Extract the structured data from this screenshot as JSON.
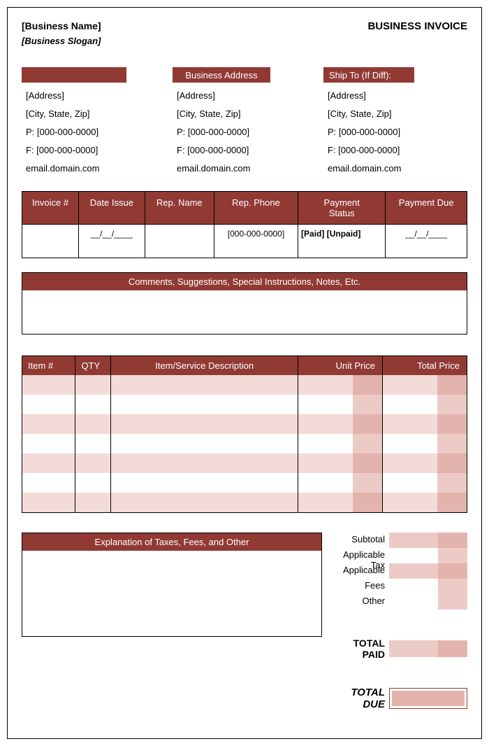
{
  "colors": {
    "brand": "#913a34",
    "light1": "#eccbc7",
    "light2": "#e3b3ae",
    "stripe": "#f3dbd8",
    "border": "#000000",
    "white": "#ffffff",
    "text": "#000000"
  },
  "header": {
    "business_name": "[Business Name]",
    "business_slogan": "[Business Slogan]",
    "doc_title": "BUSINESS INVOICE"
  },
  "address_blocks": [
    {
      "title": "",
      "lines": [
        "[Address]",
        "[City, State, Zip]",
        "P: [000-000-0000]",
        "F: [000-000-0000]",
        "email.domain.com"
      ]
    },
    {
      "title": "Business Address",
      "lines": [
        "[Address]",
        "[City, State, Zip]",
        "P: [000-000-0000]",
        "F: [000-000-0000]",
        "email.domain.com"
      ]
    },
    {
      "title": "Ship To (If Diff):",
      "lines": [
        "[Address]",
        "[City, State, Zip]",
        "P: [000-000-0000]",
        "F: [000-000-0000]",
        "email.domain.com"
      ]
    }
  ],
  "meta": {
    "columns": [
      "Invoice #",
      "Date Issue",
      "Rep. Name",
      "Rep. Phone",
      "Payment Status",
      "Payment Due"
    ],
    "values": [
      "",
      "__/__/____",
      "",
      "[000-000-0000]",
      "[Paid] [Unpaid]",
      "__/__/____"
    ]
  },
  "comments": {
    "title": "Comments, Suggestions,  Special Instructions,  Notes, Etc."
  },
  "items": {
    "columns": [
      "Item #",
      "QTY",
      "Item/Service Description",
      "Unit Price",
      "Total Price"
    ],
    "col_widths": [
      "12%",
      "8%",
      "42%",
      "19%",
      "19%"
    ],
    "row_count": 7,
    "stripe_indices": [
      0,
      2,
      4,
      6
    ]
  },
  "explain": {
    "title": "Explanation  of Taxes, Fees, and Other"
  },
  "totals": {
    "rows": [
      "Subtotal",
      "Applicable Tax",
      "Applicable Fees",
      "Other"
    ],
    "paid_label": "TOTAL PAID",
    "due_label": "TOTAL DUE"
  }
}
